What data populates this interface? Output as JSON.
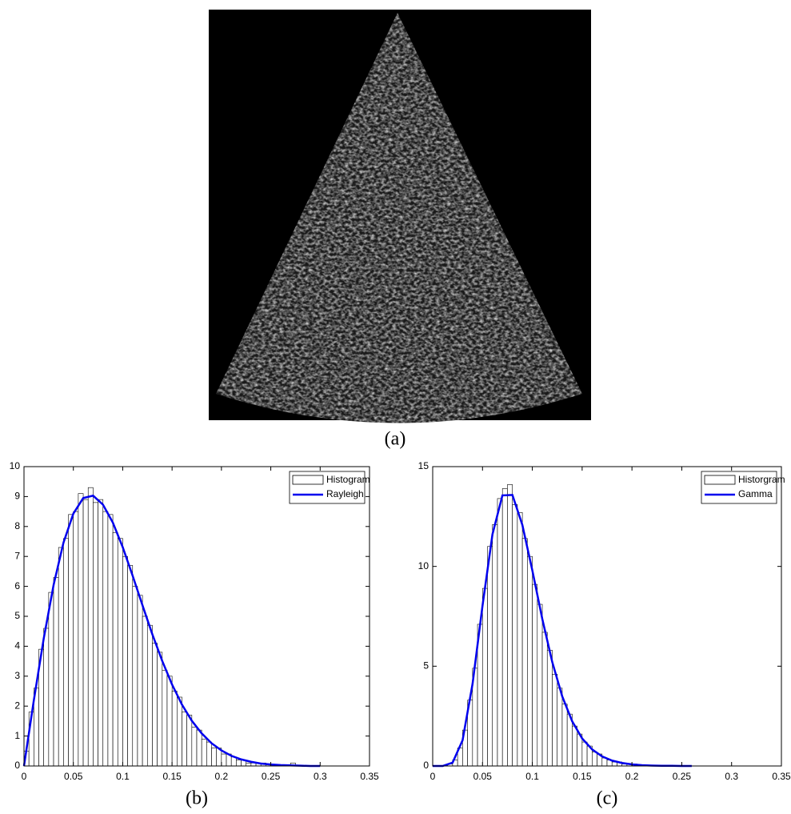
{
  "image": {
    "caption": "(a)"
  },
  "chart_data": [
    {
      "type": "histogram",
      "caption": "(b)",
      "name": "Histogram",
      "color": "#ffffff",
      "bins": [
        0,
        0.005,
        0.01,
        0.015,
        0.02,
        0.025,
        0.03,
        0.035,
        0.04,
        0.045,
        0.05,
        0.055,
        0.06,
        0.065,
        0.07,
        0.075,
        0.08,
        0.085,
        0.09,
        0.095,
        0.1,
        0.105,
        0.11,
        0.115,
        0.12,
        0.125,
        0.13,
        0.135,
        0.14,
        0.145,
        0.15,
        0.155,
        0.16,
        0.165,
        0.17,
        0.175,
        0.18,
        0.185,
        0.19,
        0.195,
        0.2,
        0.205,
        0.21,
        0.215,
        0.22,
        0.225,
        0.23,
        0.235,
        0.24,
        0.245,
        0.25,
        0.255,
        0.26,
        0.265,
        0.27,
        0.275,
        0.28,
        0.285,
        0.29,
        0.295,
        0.3
      ],
      "values": [
        0.5,
        1.8,
        2.6,
        3.9,
        4.6,
        5.8,
        6.3,
        7.3,
        7.6,
        8.4,
        8.5,
        9.1,
        8.9,
        9.3,
        8.8,
        8.9,
        8.5,
        8.4,
        7.8,
        7.6,
        7.0,
        6.7,
        6.0,
        5.7,
        5.0,
        4.7,
        4.1,
        3.8,
        3.2,
        3.0,
        2.5,
        2.3,
        1.8,
        1.7,
        1.3,
        1.2,
        0.9,
        0.8,
        0.6,
        0.6,
        0.4,
        0.4,
        0.3,
        0.2,
        0.2,
        0.1,
        0.1,
        0.1,
        0.1,
        0.0,
        0.0,
        0.0,
        0.0,
        0.0,
        0.1,
        0.0,
        0.0,
        0.0,
        0.0,
        0.0
      ],
      "fit": {
        "name": "Rayleigh",
        "color": "#0000ee",
        "x": [
          0,
          0.01,
          0.02,
          0.03,
          0.04,
          0.05,
          0.06,
          0.07,
          0.08,
          0.09,
          0.1,
          0.11,
          0.12,
          0.13,
          0.14,
          0.15,
          0.16,
          0.17,
          0.18,
          0.19,
          0.2,
          0.21,
          0.22,
          0.23,
          0.24,
          0.25,
          0.26,
          0.27,
          0.28,
          0.29,
          0.3
        ],
        "values": [
          0,
          2.2,
          4.26,
          6.05,
          7.46,
          8.43,
          8.95,
          9.03,
          8.73,
          8.13,
          7.31,
          6.36,
          5.37,
          4.4,
          3.51,
          2.72,
          2.05,
          1.51,
          1.09,
          0.76,
          0.52,
          0.34,
          0.22,
          0.14,
          0.08,
          0.05,
          0.03,
          0.02,
          0.01,
          0,
          0
        ]
      },
      "xlim": [
        0,
        0.35
      ],
      "xticks": [
        0,
        0.05,
        0.1,
        0.15,
        0.2,
        0.25,
        0.3,
        0.35
      ],
      "ylim": [
        0,
        10
      ],
      "yticks": [
        0,
        1,
        2,
        3,
        4,
        5,
        6,
        7,
        8,
        9,
        10
      ],
      "legend": "upper right"
    },
    {
      "type": "histogram",
      "caption": "(c)",
      "name": "Historgram",
      "color": "#ffffff",
      "bins": [
        0,
        0.005,
        0.01,
        0.015,
        0.02,
        0.025,
        0.03,
        0.035,
        0.04,
        0.045,
        0.05,
        0.055,
        0.06,
        0.065,
        0.07,
        0.075,
        0.08,
        0.085,
        0.09,
        0.095,
        0.1,
        0.105,
        0.11,
        0.115,
        0.12,
        0.125,
        0.13,
        0.135,
        0.14,
        0.145,
        0.15,
        0.155,
        0.16,
        0.165,
        0.17,
        0.175,
        0.18,
        0.185,
        0.19,
        0.195,
        0.2,
        0.205,
        0.21,
        0.215,
        0.22,
        0.225,
        0.23,
        0.235,
        0.24,
        0.245,
        0.25,
        0.255,
        0.26,
        0.265,
        0.27
      ],
      "values": [
        0,
        0,
        0.0,
        0.1,
        0.3,
        0.9,
        1.8,
        3.3,
        4.9,
        7.1,
        8.9,
        11.0,
        12.1,
        13.4,
        13.9,
        14.1,
        13.1,
        12.7,
        11.4,
        10.5,
        9.1,
        8.1,
        6.7,
        5.8,
        4.6,
        3.9,
        3.1,
        2.6,
        2.0,
        1.6,
        1.2,
        1.0,
        0.7,
        0.6,
        0.4,
        0.3,
        0.2,
        0.2,
        0.1,
        0.1,
        0.1,
        0.0,
        0.0,
        0.0,
        0.0,
        0.0,
        0.0,
        0.0,
        0.0,
        0.0,
        0.0,
        0.0,
        0.0,
        0.0
      ],
      "fit": {
        "name": "Gamma",
        "color": "#0000ee",
        "x": [
          0,
          0.01,
          0.02,
          0.03,
          0.04,
          0.05,
          0.06,
          0.07,
          0.08,
          0.09,
          0.1,
          0.11,
          0.12,
          0.13,
          0.14,
          0.15,
          0.16,
          0.17,
          0.18,
          0.19,
          0.2,
          0.21,
          0.22,
          0.23,
          0.24,
          0.25,
          0.26
        ],
        "values": [
          0,
          0,
          0.17,
          1.29,
          4.11,
          8.03,
          11.61,
          13.56,
          13.58,
          12.08,
          9.8,
          7.37,
          5.21,
          3.49,
          2.24,
          1.38,
          0.83,
          0.48,
          0.27,
          0.15,
          0.08,
          0.04,
          0.02,
          0.01,
          0.01,
          0,
          0
        ]
      },
      "xlim": [
        0,
        0.35
      ],
      "xticks": [
        0,
        0.05,
        0.1,
        0.15,
        0.2,
        0.25,
        0.3,
        0.35
      ],
      "ylim": [
        0,
        15
      ],
      "yticks": [
        0,
        5,
        10,
        15
      ],
      "legend": "upper right"
    }
  ]
}
